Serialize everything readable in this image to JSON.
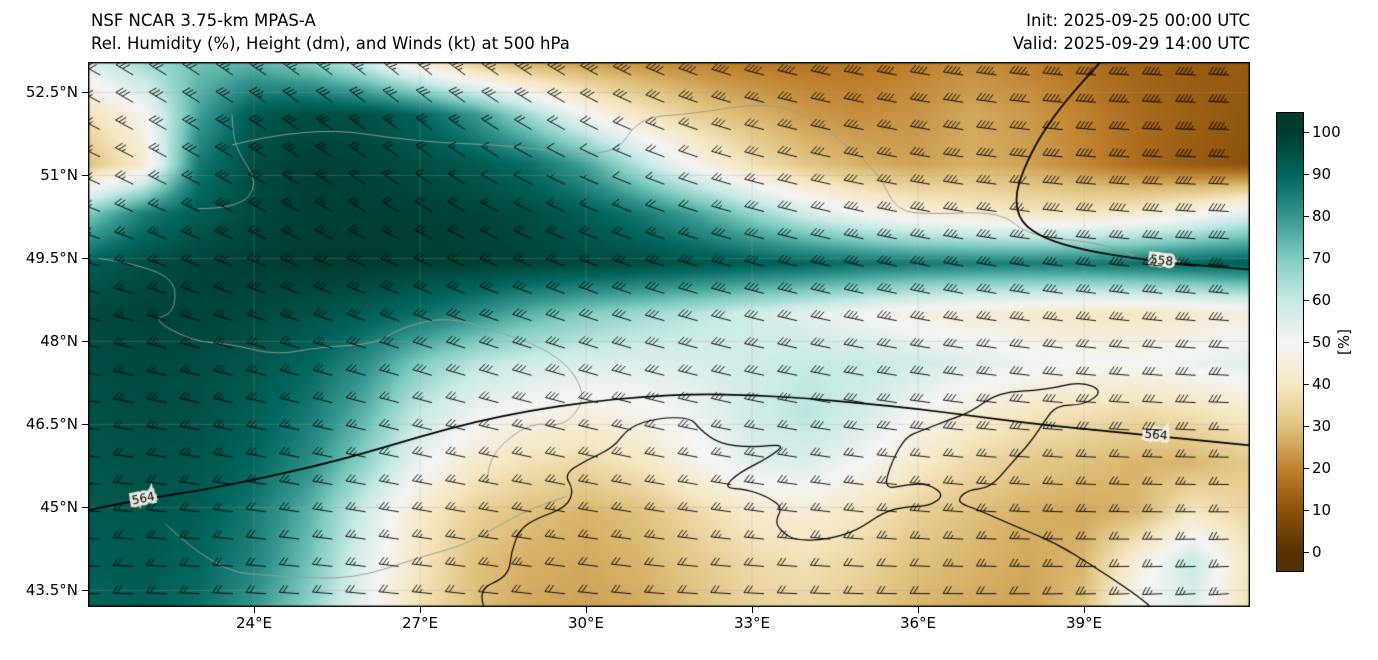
{
  "header": {
    "title_line1": "NSF NCAR 3.75-km MPAS-A",
    "title_line2": "Rel. Humidity (%), Height (dm), and Winds (kt) at 500 hPa",
    "init_line": "Init: 2025-09-25 00:00 UTC",
    "valid_line": "Valid: 2025-09-29 14:00 UTC"
  },
  "axes": {
    "y_tick_labels": [
      "52.5°N",
      "51°N",
      "49.5°N",
      "48°N",
      "46.5°N",
      "45°N",
      "43.5°N"
    ],
    "y_tick_lats": [
      52.5,
      51,
      49.5,
      48,
      46.5,
      45,
      43.5
    ],
    "x_tick_labels": [
      "24°E",
      "27°E",
      "30°E",
      "33°E",
      "36°E",
      "39°E"
    ],
    "x_tick_lons": [
      24,
      27,
      30,
      33,
      36,
      39
    ]
  },
  "colorbar": {
    "tick_labels": [
      "100",
      "90",
      "80",
      "70",
      "60",
      "50",
      "40",
      "30",
      "20",
      "10",
      "0"
    ],
    "unit_label": "[%]",
    "stops": [
      [
        0,
        "#543005"
      ],
      [
        10,
        "#8c510a"
      ],
      [
        20,
        "#bf812d"
      ],
      [
        30,
        "#dfc27d"
      ],
      [
        40,
        "#f6e8c3"
      ],
      [
        50,
        "#f5f5f5"
      ],
      [
        60,
        "#c7eae5"
      ],
      [
        70,
        "#80cdc1"
      ],
      [
        80,
        "#35978f"
      ],
      [
        90,
        "#01665e"
      ],
      [
        100,
        "#003c30"
      ]
    ]
  },
  "chart_data": {
    "type": "heatmap",
    "subtype": "filled-contour-map-with-wind-barbs-and-height-contours",
    "title": "Rel. Humidity (%), Height (dm), and Winds (kt) at 500 hPa",
    "model": "NSF NCAR 3.75-km MPAS-A",
    "level": "500 hPa",
    "units": {
      "humidity": "%",
      "height": "dm",
      "wind": "kt"
    },
    "extent": {
      "lon_min": 21.0,
      "lon_max": 42.0,
      "lat_min": 43.2,
      "lat_max": 53.05
    },
    "rh_grid": {
      "lon_start": 21,
      "lon_step": 1,
      "lat_start": 53.0,
      "lat_step": -0.9,
      "values": [
        [
          55,
          65,
          72,
          75,
          70,
          60,
          45,
          34,
          28,
          25,
          23,
          21,
          19,
          18,
          18,
          20,
          22,
          20,
          17,
          14,
          12,
          12
        ],
        [
          38,
          48,
          78,
          93,
          96,
          95,
          90,
          80,
          65,
          50,
          40,
          33,
          28,
          24,
          22,
          23,
          26,
          24,
          20,
          16,
          13,
          11
        ],
        [
          30,
          42,
          86,
          96,
          99,
          98,
          96,
          93,
          88,
          78,
          62,
          48,
          38,
          31,
          27,
          25,
          27,
          25,
          21,
          16,
          12,
          10
        ],
        [
          70,
          85,
          92,
          97,
          99,
          99,
          99,
          98,
          96,
          92,
          86,
          78,
          68,
          58,
          50,
          45,
          42,
          40,
          40,
          42,
          48,
          55
        ],
        [
          92,
          96,
          98,
          99,
          100,
          100,
          99,
          99,
          98,
          97,
          96,
          94,
          92,
          90,
          88,
          86,
          85,
          85,
          86,
          88,
          90,
          92
        ],
        [
          97,
          98,
          98,
          97,
          95,
          92,
          88,
          82,
          75,
          70,
          66,
          62,
          58,
          54,
          50,
          46,
          44,
          42,
          40,
          40,
          42,
          45
        ],
        [
          96,
          97,
          96,
          94,
          90,
          82,
          70,
          62,
          58,
          56,
          55,
          56,
          58,
          60,
          60,
          58,
          55,
          52,
          50,
          50,
          52,
          55
        ],
        [
          95,
          96,
          95,
          92,
          86,
          75,
          60,
          52,
          48,
          46,
          48,
          52,
          58,
          62,
          58,
          50,
          44,
          40,
          38,
          36,
          38,
          42
        ],
        [
          94,
          95,
          94,
          90,
          82,
          68,
          52,
          42,
          38,
          36,
          40,
          48,
          54,
          56,
          50,
          42,
          36,
          32,
          30,
          28,
          28,
          32
        ],
        [
          93,
          94,
          92,
          86,
          75,
          58,
          42,
          34,
          30,
          28,
          30,
          36,
          42,
          44,
          40,
          34,
          30,
          27,
          26,
          28,
          40,
          35
        ],
        [
          92,
          93,
          90,
          84,
          72,
          55,
          40,
          30,
          27,
          26,
          28,
          32,
          36,
          38,
          35,
          30,
          28,
          26,
          28,
          45,
          60,
          40
        ],
        [
          90,
          92,
          88,
          80,
          68,
          52,
          38,
          30,
          26,
          25,
          26,
          30,
          34,
          35,
          32,
          28,
          26,
          25,
          30,
          50,
          55,
          38
        ]
      ]
    },
    "height_contours": [
      {
        "label": "564",
        "points": [
          [
            21,
            44.95
          ],
          [
            22,
            45.15
          ],
          [
            23,
            45.3
          ],
          [
            24,
            45.5
          ],
          [
            25,
            45.72
          ],
          [
            26,
            45.98
          ],
          [
            27,
            46.28
          ],
          [
            28,
            46.55
          ],
          [
            29,
            46.75
          ],
          [
            30,
            46.9
          ],
          [
            31,
            47.0
          ],
          [
            32,
            47.05
          ],
          [
            33,
            47.03
          ],
          [
            34,
            46.97
          ],
          [
            35,
            46.88
          ],
          [
            36,
            46.78
          ],
          [
            37,
            46.65
          ],
          [
            38,
            46.52
          ],
          [
            39,
            46.42
          ],
          [
            40,
            46.32
          ],
          [
            41,
            46.22
          ],
          [
            42,
            46.12
          ]
        ],
        "label_positions": [
          [
            22.0,
            45.15
          ],
          [
            40.3,
            46.3
          ]
        ]
      },
      {
        "label": "558",
        "points": [
          [
            39.3,
            53.05
          ],
          [
            38.7,
            52.4
          ],
          [
            38.2,
            51.7
          ],
          [
            37.9,
            51.1
          ],
          [
            37.75,
            50.6
          ],
          [
            37.85,
            50.15
          ],
          [
            38.3,
            49.85
          ],
          [
            39.0,
            49.65
          ],
          [
            39.9,
            49.5
          ],
          [
            41.0,
            49.38
          ],
          [
            42.0,
            49.3
          ]
        ],
        "label_positions": [
          [
            40.4,
            49.45
          ]
        ]
      }
    ],
    "winds": {
      "lons": [
        21,
        24,
        27,
        30,
        33,
        36,
        39,
        42
      ],
      "lats": [
        53,
        51,
        49,
        47,
        45,
        43
      ],
      "dir_deg": [
        [
          300,
          305,
          310,
          300,
          285,
          280,
          275,
          272
        ],
        [
          295,
          300,
          305,
          295,
          285,
          280,
          275,
          272
        ],
        [
          285,
          290,
          292,
          290,
          285,
          282,
          278,
          275
        ],
        [
          280,
          283,
          285,
          285,
          282,
          278,
          275,
          272
        ],
        [
          275,
          278,
          280,
          280,
          278,
          275,
          272,
          270
        ],
        [
          270,
          272,
          275,
          275,
          272,
          270,
          268,
          265
        ]
      ],
      "speed_kt": [
        [
          28,
          35,
          38,
          42,
          40,
          43,
          45,
          45
        ],
        [
          22,
          30,
          15,
          2,
          25,
          35,
          40,
          42
        ],
        [
          25,
          28,
          30,
          32,
          33,
          35,
          35,
          35
        ],
        [
          22,
          25,
          27,
          28,
          28,
          30,
          30,
          28
        ],
        [
          20,
          22,
          25,
          25,
          25,
          25,
          25,
          25
        ],
        [
          18,
          20,
          22,
          20,
          20,
          20,
          22,
          22
        ]
      ]
    },
    "coastline": [
      [
        28.2,
        43.1
      ],
      [
        28.0,
        43.5
      ],
      [
        28.6,
        43.75
      ],
      [
        28.65,
        44.2
      ],
      [
        28.8,
        44.6
      ],
      [
        29.1,
        44.8
      ],
      [
        29.65,
        45.0
      ],
      [
        29.78,
        45.32
      ],
      [
        29.6,
        45.6
      ],
      [
        30.0,
        45.85
      ],
      [
        30.5,
        46.08
      ],
      [
        30.77,
        46.45
      ],
      [
        31.3,
        46.62
      ],
      [
        31.9,
        46.62
      ],
      [
        32.05,
        46.42
      ],
      [
        32.4,
        46.15
      ],
      [
        33.0,
        46.08
      ],
      [
        33.62,
        46.15
      ],
      [
        33.3,
        45.9
      ],
      [
        32.75,
        45.62
      ],
      [
        32.48,
        45.35
      ],
      [
        32.9,
        45.33
      ],
      [
        33.3,
        45.18
      ],
      [
        33.55,
        45.0
      ],
      [
        33.42,
        44.75
      ],
      [
        33.52,
        44.58
      ],
      [
        33.78,
        44.4
      ],
      [
        34.35,
        44.42
      ],
      [
        34.9,
        44.58
      ],
      [
        35.38,
        44.92
      ],
      [
        35.8,
        45.02
      ],
      [
        36.2,
        45.02
      ],
      [
        36.48,
        45.22
      ],
      [
        36.2,
        45.42
      ],
      [
        35.82,
        45.42
      ],
      [
        35.38,
        45.32
      ],
      [
        35.52,
        45.82
      ],
      [
        35.78,
        46.28
      ],
      [
        36.05,
        46.38
      ],
      [
        36.55,
        46.58
      ],
      [
        36.95,
        46.72
      ],
      [
        37.45,
        47.08
      ],
      [
        38.3,
        47.12
      ],
      [
        38.95,
        47.28
      ],
      [
        39.35,
        47.1
      ],
      [
        39.0,
        46.85
      ],
      [
        38.5,
        46.85
      ],
      [
        38.28,
        46.55
      ],
      [
        38.05,
        46.2
      ],
      [
        37.65,
        45.75
      ],
      [
        37.3,
        45.35
      ],
      [
        36.9,
        45.32
      ],
      [
        36.68,
        45.1
      ],
      [
        37.1,
        44.95
      ],
      [
        37.78,
        44.65
      ],
      [
        38.5,
        44.35
      ],
      [
        39.15,
        43.95
      ],
      [
        39.75,
        43.55
      ],
      [
        40.1,
        43.3
      ],
      [
        40.3,
        43.1
      ]
    ],
    "borders": [
      [
        [
          21.2,
          49.5
        ],
        [
          21.9,
          49.4
        ],
        [
          22.6,
          49.1
        ],
        [
          22.55,
          48.5
        ],
        [
          22.15,
          48.4
        ],
        [
          22.9,
          48.0
        ],
        [
          23.6,
          47.95
        ],
        [
          24.4,
          47.75
        ],
        [
          25.2,
          47.9
        ],
        [
          26.2,
          47.95
        ],
        [
          26.65,
          48.25
        ],
        [
          27.5,
          48.45
        ],
        [
          28.35,
          48.2
        ],
        [
          29.2,
          47.9
        ],
        [
          29.75,
          47.5
        ],
        [
          30.0,
          46.95
        ],
        [
          29.6,
          46.45
        ],
        [
          29.0,
          46.55
        ],
        [
          28.3,
          46.0
        ],
        [
          28.2,
          45.45
        ]
      ],
      [
        [
          23.6,
          51.55
        ],
        [
          25.0,
          51.9
        ],
        [
          27.0,
          51.6
        ],
        [
          28.6,
          51.55
        ],
        [
          30.5,
          51.3
        ],
        [
          30.95,
          52.05
        ],
        [
          31.8,
          52.1
        ],
        [
          33.5,
          52.35
        ],
        [
          34.4,
          51.8
        ],
        [
          35.3,
          51.05
        ],
        [
          35.6,
          50.35
        ],
        [
          36.3,
          50.3
        ],
        [
          37.5,
          50.35
        ],
        [
          38.0,
          49.9
        ],
        [
          39.2,
          49.8
        ],
        [
          39.9,
          49.55
        ]
      ],
      [
        [
          22.4,
          44.7
        ],
        [
          23.3,
          43.85
        ],
        [
          24.5,
          43.75
        ],
        [
          25.8,
          43.7
        ],
        [
          27.0,
          44.1
        ],
        [
          27.9,
          44.35
        ],
        [
          28.8,
          44.9
        ],
        [
          29.65,
          45.2
        ]
      ],
      [
        [
          23.0,
          50.4
        ],
        [
          23.7,
          50.4
        ],
        [
          24.1,
          50.85
        ],
        [
          23.65,
          51.5
        ],
        [
          23.6,
          52.1
        ]
      ]
    ]
  }
}
